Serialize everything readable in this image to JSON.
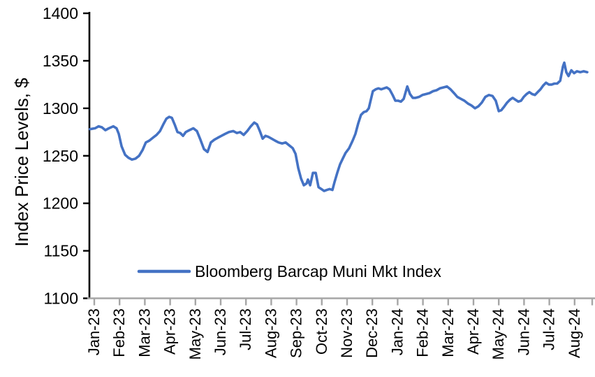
{
  "chart_data": {
    "type": "line",
    "title": "",
    "xlabel": "",
    "ylabel": "Index Price Levels, $",
    "ylim": [
      1100,
      1400
    ],
    "yticks": [
      1400,
      1350,
      1300,
      1250,
      1200,
      1150,
      1100
    ],
    "x_tick_labels": [
      "Jan-23",
      "Feb-23",
      "Mar-23",
      "Apr-23",
      "May-23",
      "Jun-23",
      "Jul-23",
      "Aug-23",
      "Sep-23",
      "Oct-23",
      "Nov-23",
      "Dec-23",
      "Jan-24",
      "Feb-24",
      "Mar-24",
      "Apr-24",
      "May-24",
      "Jun-24",
      "Jul-24",
      "Aug-24"
    ],
    "grid": false,
    "legend_position": "inside-bottom-center",
    "colors": {
      "line": "#4472C4",
      "y_axis": "#000000",
      "x_axis": "#A6A6A6",
      "text": "#000000"
    },
    "x_unit": "months since Jan-2023 tick (fractional = day of month)",
    "series": [
      {
        "name": "Bloomberg Barcap Muni Mkt Index",
        "color": "#4472C4",
        "points": [
          [
            -0.17,
            1278
          ],
          [
            0.03,
            1279
          ],
          [
            0.17,
            1281
          ],
          [
            0.3,
            1280
          ],
          [
            0.44,
            1277
          ],
          [
            0.58,
            1279
          ],
          [
            0.75,
            1281
          ],
          [
            0.88,
            1279
          ],
          [
            0.97,
            1273
          ],
          [
            1.08,
            1260
          ],
          [
            1.22,
            1251
          ],
          [
            1.35,
            1248
          ],
          [
            1.49,
            1246
          ],
          [
            1.63,
            1247
          ],
          [
            1.77,
            1250
          ],
          [
            1.91,
            1256
          ],
          [
            2.04,
            1264
          ],
          [
            2.18,
            1266
          ],
          [
            2.32,
            1269
          ],
          [
            2.46,
            1272
          ],
          [
            2.6,
            1276
          ],
          [
            2.73,
            1283
          ],
          [
            2.85,
            1289
          ],
          [
            2.96,
            1291
          ],
          [
            3.07,
            1290
          ],
          [
            3.18,
            1283
          ],
          [
            3.29,
            1275
          ],
          [
            3.4,
            1274
          ],
          [
            3.51,
            1271
          ],
          [
            3.62,
            1275
          ],
          [
            3.76,
            1277
          ],
          [
            3.92,
            1279
          ],
          [
            4.06,
            1276
          ],
          [
            4.2,
            1267
          ],
          [
            4.34,
            1257
          ],
          [
            4.48,
            1254
          ],
          [
            4.61,
            1264
          ],
          [
            4.75,
            1267
          ],
          [
            4.89,
            1269
          ],
          [
            5.03,
            1271
          ],
          [
            5.17,
            1273
          ],
          [
            5.33,
            1275
          ],
          [
            5.5,
            1276
          ],
          [
            5.64,
            1274
          ],
          [
            5.77,
            1275
          ],
          [
            5.91,
            1272
          ],
          [
            6.05,
            1276
          ],
          [
            6.19,
            1281
          ],
          [
            6.33,
            1285
          ],
          [
            6.44,
            1283
          ],
          [
            6.55,
            1276
          ],
          [
            6.66,
            1268
          ],
          [
            6.77,
            1271
          ],
          [
            6.88,
            1270
          ],
          [
            7.02,
            1268
          ],
          [
            7.15,
            1266
          ],
          [
            7.29,
            1264
          ],
          [
            7.43,
            1263
          ],
          [
            7.57,
            1264
          ],
          [
            7.71,
            1261
          ],
          [
            7.85,
            1258
          ],
          [
            7.96,
            1252
          ],
          [
            8.07,
            1237
          ],
          [
            8.18,
            1226
          ],
          [
            8.29,
            1219
          ],
          [
            8.4,
            1221
          ],
          [
            8.45,
            1225
          ],
          [
            8.54,
            1219
          ],
          [
            8.65,
            1232
          ],
          [
            8.76,
            1232
          ],
          [
            8.87,
            1217
          ],
          [
            8.98,
            1215
          ],
          [
            9.09,
            1213
          ],
          [
            9.2,
            1214
          ],
          [
            9.31,
            1215
          ],
          [
            9.42,
            1214
          ],
          [
            9.5,
            1222
          ],
          [
            9.61,
            1232
          ],
          [
            9.72,
            1241
          ],
          [
            9.83,
            1247
          ],
          [
            9.94,
            1253
          ],
          [
            10.08,
            1258
          ],
          [
            10.22,
            1266
          ],
          [
            10.33,
            1273
          ],
          [
            10.44,
            1284
          ],
          [
            10.55,
            1293
          ],
          [
            10.66,
            1296
          ],
          [
            10.77,
            1297
          ],
          [
            10.86,
            1300
          ],
          [
            10.94,
            1309
          ],
          [
            11.02,
            1318
          ],
          [
            11.13,
            1320
          ],
          [
            11.24,
            1321
          ],
          [
            11.35,
            1320
          ],
          [
            11.46,
            1321
          ],
          [
            11.57,
            1322
          ],
          [
            11.68,
            1320
          ],
          [
            11.8,
            1314
          ],
          [
            11.91,
            1308
          ],
          [
            12.02,
            1308
          ],
          [
            12.13,
            1307
          ],
          [
            12.24,
            1310
          ],
          [
            12.38,
            1323
          ],
          [
            12.49,
            1315
          ],
          [
            12.6,
            1311
          ],
          [
            12.71,
            1311
          ],
          [
            12.85,
            1312
          ],
          [
            12.98,
            1314
          ],
          [
            13.12,
            1315
          ],
          [
            13.26,
            1316
          ],
          [
            13.4,
            1318
          ],
          [
            13.54,
            1319
          ],
          [
            13.67,
            1321
          ],
          [
            13.81,
            1322
          ],
          [
            13.95,
            1323
          ],
          [
            14.09,
            1320
          ],
          [
            14.23,
            1316
          ],
          [
            14.36,
            1312
          ],
          [
            14.5,
            1310
          ],
          [
            14.64,
            1308
          ],
          [
            14.78,
            1305
          ],
          [
            14.92,
            1303
          ],
          [
            15.06,
            1300
          ],
          [
            15.19,
            1302
          ],
          [
            15.33,
            1306
          ],
          [
            15.47,
            1312
          ],
          [
            15.61,
            1314
          ],
          [
            15.75,
            1313
          ],
          [
            15.88,
            1308
          ],
          [
            16.0,
            1297
          ],
          [
            16.1,
            1298
          ],
          [
            16.22,
            1302
          ],
          [
            16.33,
            1306
          ],
          [
            16.44,
            1309
          ],
          [
            16.55,
            1311
          ],
          [
            16.66,
            1309
          ],
          [
            16.77,
            1307
          ],
          [
            16.88,
            1308
          ],
          [
            16.99,
            1312
          ],
          [
            17.1,
            1315
          ],
          [
            17.21,
            1317
          ],
          [
            17.32,
            1315
          ],
          [
            17.43,
            1314
          ],
          [
            17.54,
            1317
          ],
          [
            17.65,
            1320
          ],
          [
            17.76,
            1324
          ],
          [
            17.87,
            1327
          ],
          [
            17.98,
            1325
          ],
          [
            18.09,
            1325
          ],
          [
            18.2,
            1326
          ],
          [
            18.31,
            1326
          ],
          [
            18.43,
            1329
          ],
          [
            18.54,
            1344
          ],
          [
            18.59,
            1348
          ],
          [
            18.67,
            1338
          ],
          [
            18.76,
            1334
          ],
          [
            18.87,
            1340
          ],
          [
            18.98,
            1337
          ],
          [
            19.09,
            1339
          ],
          [
            19.23,
            1338
          ],
          [
            19.36,
            1339
          ],
          [
            19.5,
            1338
          ]
        ]
      }
    ]
  }
}
